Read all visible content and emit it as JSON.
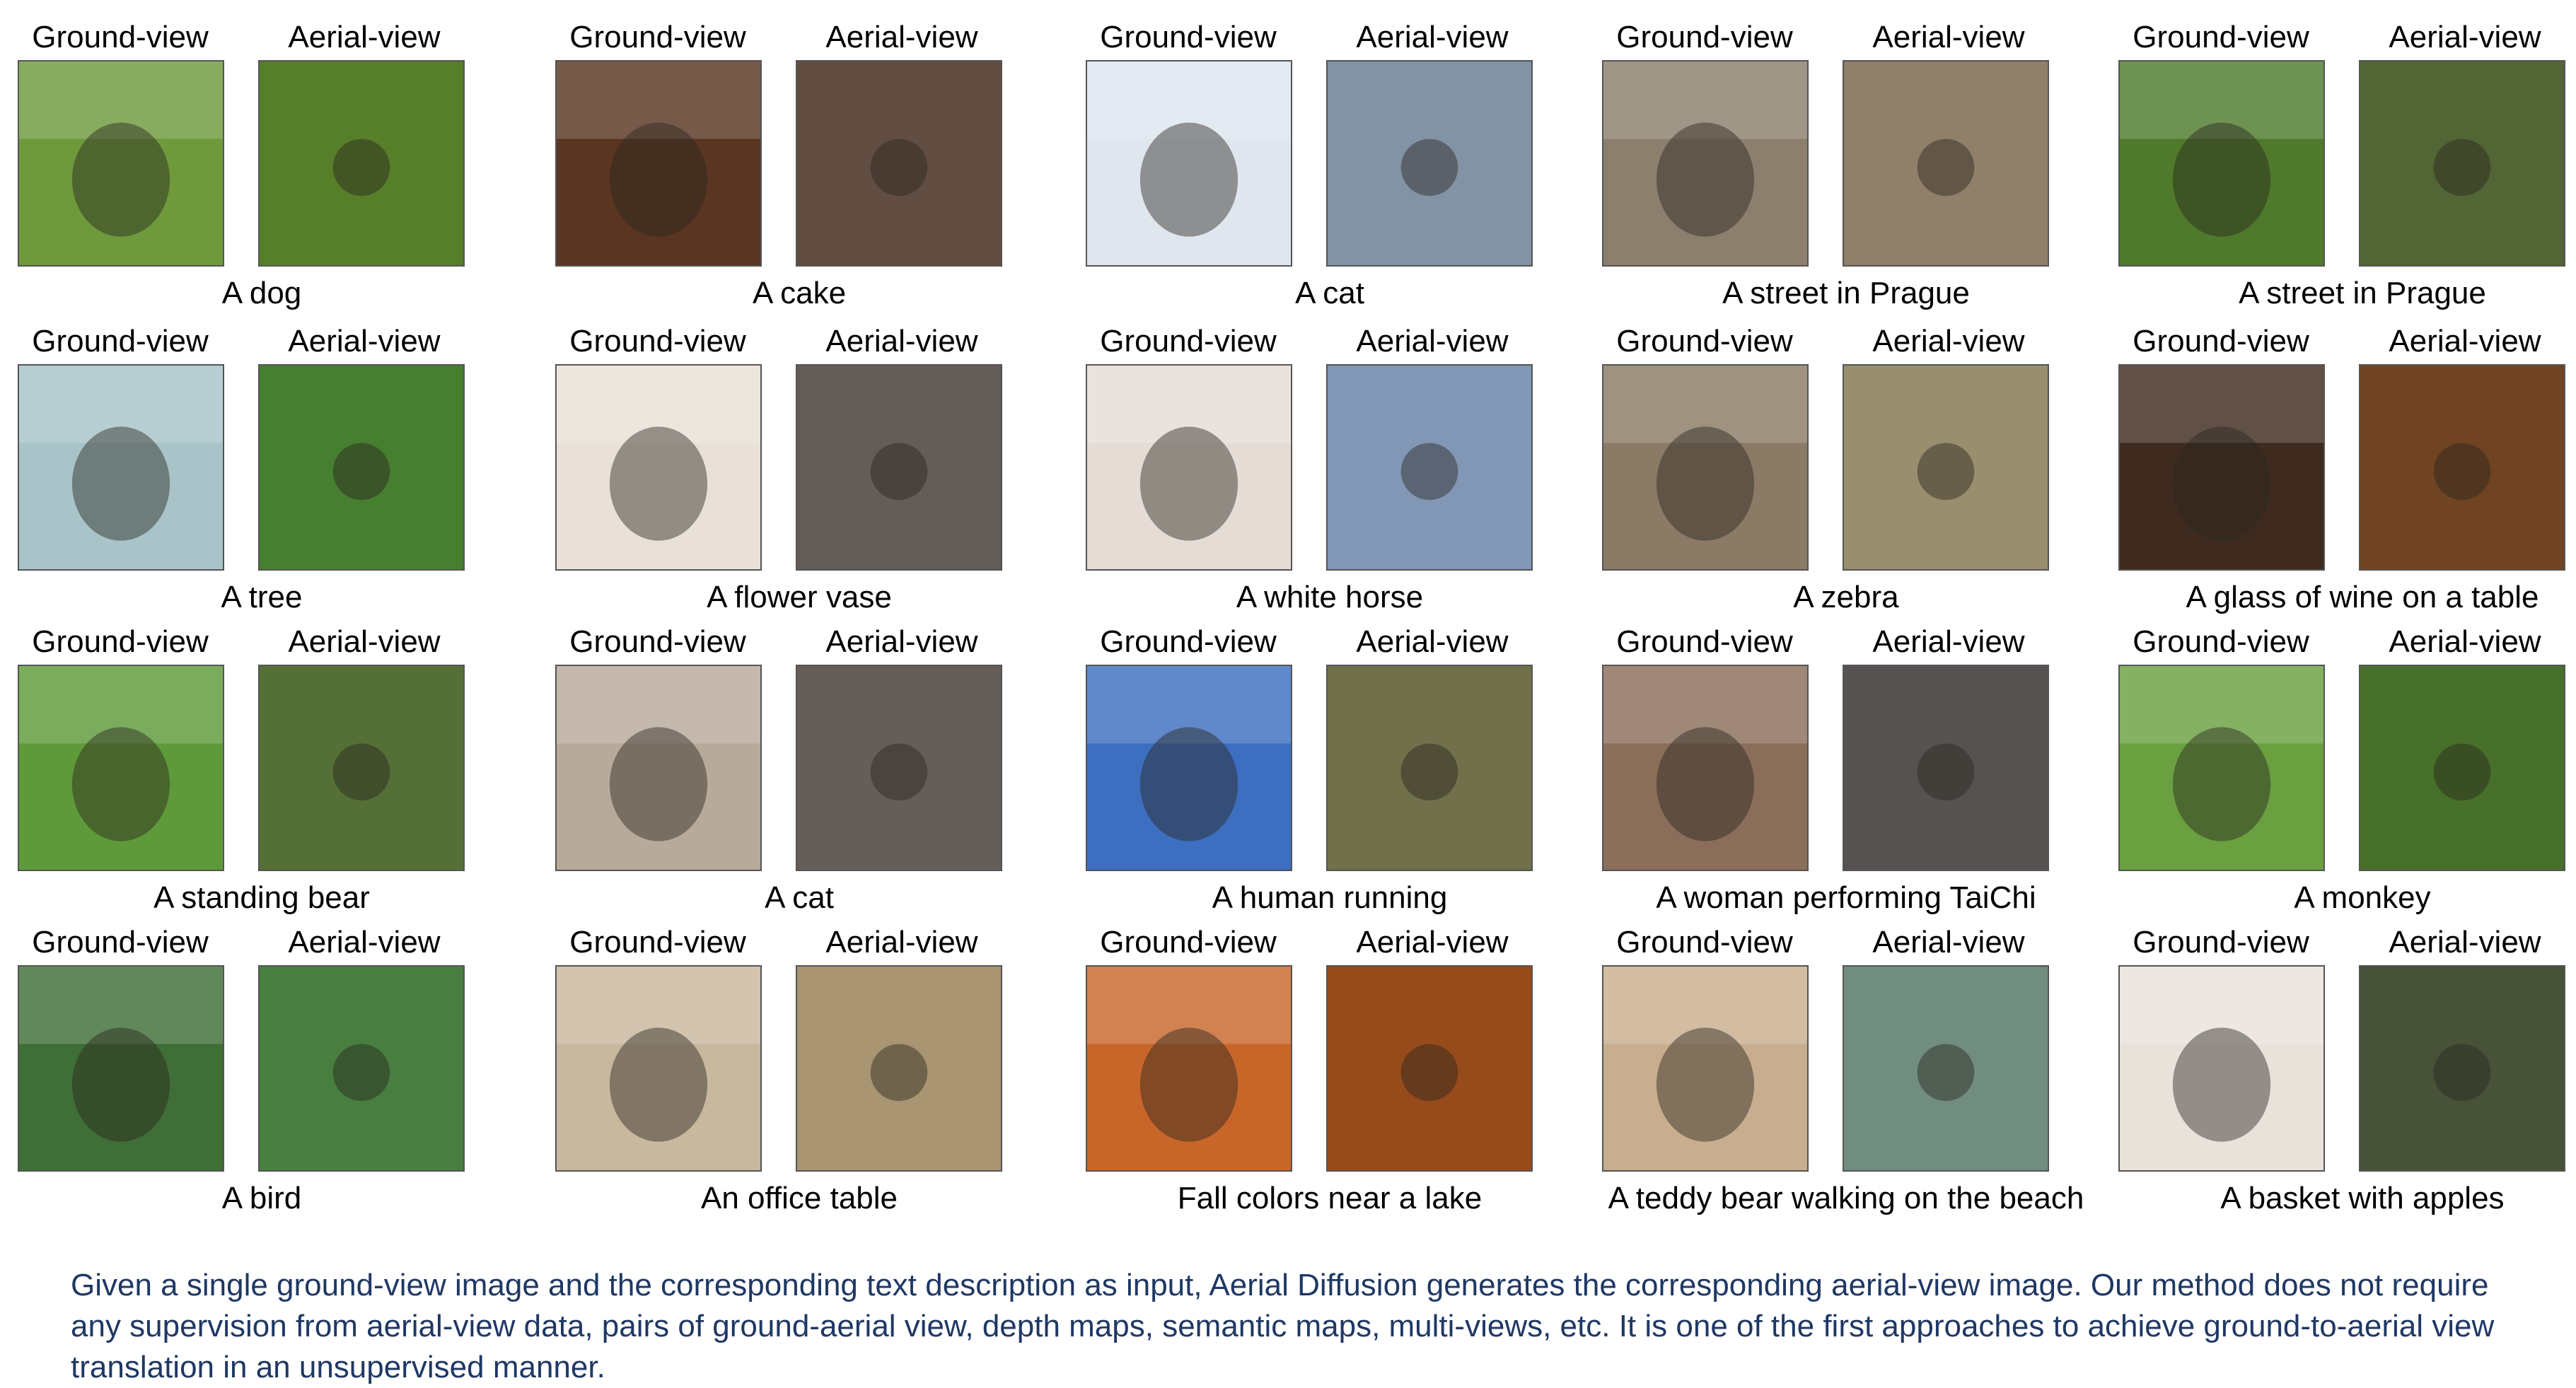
{
  "view_labels": {
    "ground": "Ground-view",
    "aerial": "Aerial-view"
  },
  "grid": [
    [
      {
        "caption": "A dog",
        "ground_color": "#6e9a3c",
        "aerial_color": "#5f8a2e"
      },
      {
        "caption": "A cake",
        "ground_color": "#5a3521",
        "aerial_color": "#6b5448"
      },
      {
        "caption": "A cat",
        "ground_color": "#dfe6ee",
        "aerial_color": "#8fa0b5"
      },
      {
        "caption": "A street in Prague",
        "ground_color": "#8c7f6e",
        "aerial_color": "#9d8a72"
      },
      {
        "caption": "A street in Prague",
        "ground_color": "#4f7a2b",
        "aerial_color": "#5a6e3a"
      }
    ],
    [
      {
        "caption": "A tree",
        "ground_color": "#a8c4c8",
        "aerial_color": "#4e8a35"
      },
      {
        "caption": "A flower vase",
        "ground_color": "#e9e1d8",
        "aerial_color": "#6c6460"
      },
      {
        "caption": "A white horse",
        "ground_color": "#e6dcd6",
        "aerial_color": "#8ea4c6"
      },
      {
        "caption": "A zebra",
        "ground_color": "#8a7a66",
        "aerial_color": "#a69b78"
      },
      {
        "caption": "A glass of wine on a table",
        "ground_color": "#3e2a1e",
        "aerial_color": "#7a4a26"
      }
    ],
    [
      {
        "caption": "A standing bear",
        "ground_color": "#5f9a3a",
        "aerial_color": "#5d7a3c"
      },
      {
        "caption": "A cat",
        "ground_color": "#b8aa9a",
        "aerial_color": "#6e6660"
      },
      {
        "caption": "A human running",
        "ground_color": "#3d6fc0",
        "aerial_color": "#7a7a52"
      },
      {
        "caption": "A woman performing TaiChi",
        "ground_color": "#8a6e5a",
        "aerial_color": "#5e5a58"
      },
      {
        "caption": "A monkey",
        "ground_color": "#6aa040",
        "aerial_color": "#4e7a2e"
      }
    ],
    [
      {
        "caption": "A bird",
        "ground_color": "#3f6e36",
        "aerial_color": "#4f8a46"
      },
      {
        "caption": "An office table",
        "ground_color": "#c8b89e",
        "aerial_color": "#b8a27c"
      },
      {
        "caption": "Fall colors near a lake",
        "ground_color": "#c8662a",
        "aerial_color": "#a4521e"
      },
      {
        "caption": "A teddy bear walking on the beach",
        "ground_color": "#c8ae8e",
        "aerial_color": "#7a9a8a"
      },
      {
        "caption": "A basket with apples",
        "ground_color": "#e8e2da",
        "aerial_color": "#4e5a3e"
      }
    ]
  ],
  "caption_text": "Given a single ground-view image and the corresponding text description as input, Aerial Diffusion generates the corresponding aerial-view image. Our method does not require any supervision from aerial-view data, pairs of ground-aerial view, depth maps, semantic maps, multi-views, etc. It is one of the first approaches to achieve ground-to-aerial view translation in an unsupervised manner."
}
